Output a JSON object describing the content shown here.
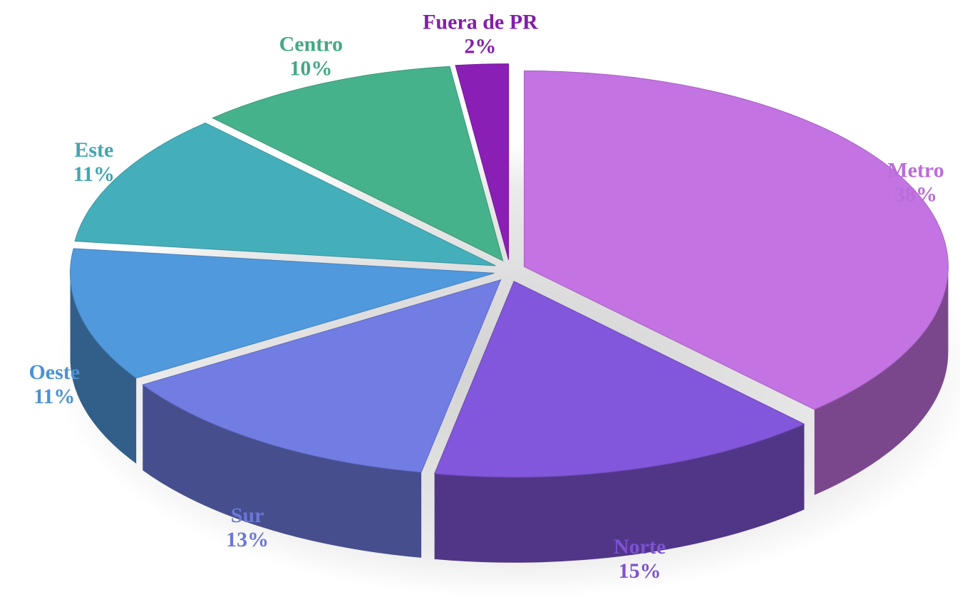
{
  "chart_data": {
    "type": "pie",
    "categories": [
      "Metro",
      "Norte",
      "Sur",
      "Oeste",
      "Este",
      "Centro",
      "Fuera de PR"
    ],
    "values": [
      38,
      15,
      13,
      11,
      11,
      10,
      2
    ],
    "value_labels": [
      "38%",
      "15%",
      "13%",
      "11%",
      "11%",
      "10%",
      "2%"
    ],
    "colors": [
      "#c473e3",
      "#8257db",
      "#717de3",
      "#5199dd",
      "#44afbb",
      "#46b28b",
      "#8a1fb5"
    ]
  }
}
